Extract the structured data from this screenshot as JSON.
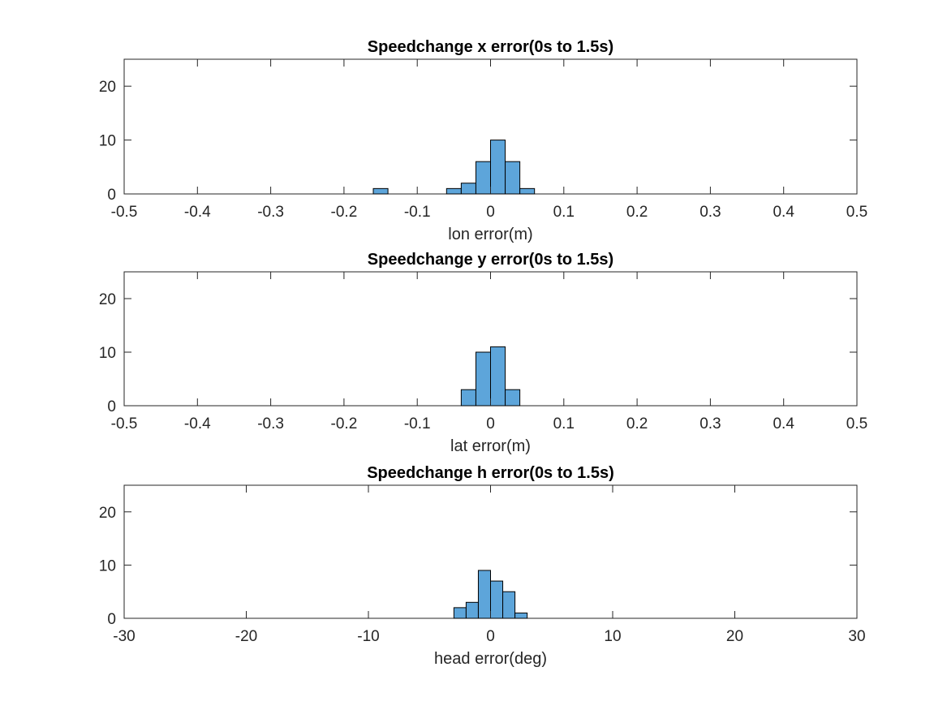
{
  "chart_data": [
    {
      "type": "bar",
      "title": "Speedchange x error(0s to 1.5s)",
      "xlabel": "lon error(m)",
      "ylabel": "",
      "xlim": [
        -0.5,
        0.5
      ],
      "ylim": [
        0,
        25
      ],
      "xticks": [
        -0.5,
        -0.4,
        -0.3,
        -0.2,
        -0.1,
        0,
        0.1,
        0.2,
        0.3,
        0.4,
        0.5
      ],
      "xtick_labels": [
        "-0.5",
        "-0.4",
        "-0.3",
        "-0.2",
        "-0.1",
        "0",
        "0.1",
        "0.2",
        "0.3",
        "0.4",
        "0.5"
      ],
      "yticks": [
        0,
        10,
        20
      ],
      "ytick_labels": [
        "0",
        "10",
        "20"
      ],
      "bins": [
        {
          "x0": -0.16,
          "x1": -0.14,
          "count": 1
        },
        {
          "x0": -0.06,
          "x1": -0.04,
          "count": 1
        },
        {
          "x0": -0.04,
          "x1": -0.02,
          "count": 2
        },
        {
          "x0": -0.02,
          "x1": 0.0,
          "count": 6
        },
        {
          "x0": 0.0,
          "x1": 0.02,
          "count": 10
        },
        {
          "x0": 0.02,
          "x1": 0.04,
          "count": 6
        },
        {
          "x0": 0.04,
          "x1": 0.06,
          "count": 1
        }
      ],
      "grid": false,
      "bar_color": "#5DA5DA"
    },
    {
      "type": "bar",
      "title": "Speedchange y error(0s to 1.5s)",
      "xlabel": "lat error(m)",
      "ylabel": "",
      "xlim": [
        -0.5,
        0.5
      ],
      "ylim": [
        0,
        25
      ],
      "xticks": [
        -0.5,
        -0.4,
        -0.3,
        -0.2,
        -0.1,
        0,
        0.1,
        0.2,
        0.3,
        0.4,
        0.5
      ],
      "xtick_labels": [
        "-0.5",
        "-0.4",
        "-0.3",
        "-0.2",
        "-0.1",
        "0",
        "0.1",
        "0.2",
        "0.3",
        "0.4",
        "0.5"
      ],
      "yticks": [
        0,
        10,
        20
      ],
      "ytick_labels": [
        "0",
        "10",
        "20"
      ],
      "bins": [
        {
          "x0": -0.04,
          "x1": -0.02,
          "count": 3
        },
        {
          "x0": -0.02,
          "x1": 0.0,
          "count": 10
        },
        {
          "x0": 0.0,
          "x1": 0.02,
          "count": 11
        },
        {
          "x0": 0.02,
          "x1": 0.04,
          "count": 3
        }
      ],
      "grid": false,
      "bar_color": "#5DA5DA"
    },
    {
      "type": "bar",
      "title": "Speedchange h error(0s to 1.5s)",
      "xlabel": "head error(deg)",
      "ylabel": "",
      "xlim": [
        -30,
        30
      ],
      "ylim": [
        0,
        25
      ],
      "xticks": [
        -30,
        -20,
        -10,
        0,
        10,
        20,
        30
      ],
      "xtick_labels": [
        "-30",
        "-20",
        "-10",
        "0",
        "10",
        "20",
        "30"
      ],
      "yticks": [
        0,
        10,
        20
      ],
      "ytick_labels": [
        "0",
        "10",
        "20"
      ],
      "bins": [
        {
          "x0": -3,
          "x1": -2,
          "count": 2
        },
        {
          "x0": -2,
          "x1": -1,
          "count": 3
        },
        {
          "x0": -1,
          "x1": 0,
          "count": 9
        },
        {
          "x0": 0,
          "x1": 1,
          "count": 7
        },
        {
          "x0": 1,
          "x1": 2,
          "count": 5
        },
        {
          "x0": 2,
          "x1": 3,
          "count": 1
        }
      ],
      "grid": false,
      "bar_color": "#5DA5DA"
    }
  ]
}
